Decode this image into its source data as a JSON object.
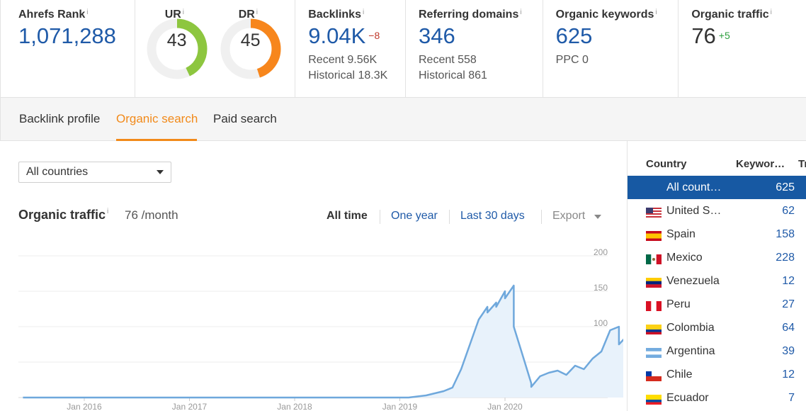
{
  "metrics": {
    "rank": {
      "label": "Ahrefs Rank",
      "info": "i",
      "value": "1,071,288"
    },
    "ur": {
      "label": "UR",
      "info": "i",
      "value": "43",
      "percent": 43,
      "color": "#8dc63f"
    },
    "dr": {
      "label": "DR",
      "info": "i",
      "value": "45",
      "percent": 45,
      "color": "#f7861c"
    },
    "backlinks": {
      "label": "Backlinks",
      "info": "i",
      "value": "9.04K",
      "delta": "−8",
      "recent": "Recent 9.56K",
      "historical": "Historical 18.3K"
    },
    "referring": {
      "label": "Referring domains",
      "info": "i",
      "value": "346",
      "recent": "Recent 558",
      "historical": "Historical 861"
    },
    "keywords": {
      "label": "Organic keywords",
      "info": "i",
      "value": "625",
      "ppc": "PPC 0"
    },
    "traffic": {
      "label": "Organic traffic",
      "info": "i",
      "value": "76",
      "delta": "+5"
    }
  },
  "tabs": [
    {
      "label": "Backlink profile",
      "active": false
    },
    {
      "label": "Organic search",
      "active": true
    },
    {
      "label": "Paid search",
      "active": false
    }
  ],
  "filter": {
    "selected": "All countries"
  },
  "chart_header": {
    "title": "Organic traffic",
    "info": "i",
    "subtitle": "76 /month",
    "ranges": [
      "All time",
      "One year",
      "Last 30 days"
    ],
    "active_range": "All time",
    "export_label": "Export"
  },
  "chart_data": {
    "type": "area",
    "ylim": [
      0,
      200
    ],
    "yticks": [
      "200",
      "150",
      "100",
      "50",
      "0"
    ],
    "xticks": [
      "Jan 2016",
      "Jan 2017",
      "Jan 2018",
      "Jan 2019",
      "Jan 2020"
    ],
    "series": [
      {
        "color": "#6fa8dc",
        "points": [
          [
            "2015-06",
            0
          ],
          [
            "2019-02",
            0
          ],
          [
            "2019-04",
            3
          ],
          [
            "2019-06",
            9
          ],
          [
            "2019-07",
            14
          ],
          [
            "2019-08",
            40
          ],
          [
            "2019-09",
            75
          ],
          [
            "2019-10",
            110
          ],
          [
            "2019-11",
            128
          ],
          [
            "2019-11",
            120
          ],
          [
            "2019-12",
            134
          ],
          [
            "2019-12",
            128
          ],
          [
            "2020-01",
            150
          ],
          [
            "2020-01",
            140
          ],
          [
            "2020-02",
            158
          ],
          [
            "2020-02",
            100
          ],
          [
            "2020-03",
            60
          ],
          [
            "2020-04",
            20
          ],
          [
            "2020-04",
            15
          ],
          [
            "2020-05",
            30
          ],
          [
            "2020-06",
            35
          ],
          [
            "2020-07",
            38
          ],
          [
            "2020-08",
            32
          ],
          [
            "2020-09",
            45
          ],
          [
            "2020-10",
            40
          ],
          [
            "2020-11",
            55
          ],
          [
            "2020-12",
            65
          ],
          [
            "2021-01",
            95
          ],
          [
            "2021-02",
            100
          ],
          [
            "2021-02",
            75
          ],
          [
            "2021-03",
            88
          ]
        ]
      }
    ]
  },
  "countries": {
    "header_country": "Country",
    "header_keywords": "Keywor…",
    "header_traffic": "Tr",
    "rows": [
      {
        "name": "All count…",
        "count": "625",
        "flag": "",
        "selected": true
      },
      {
        "name": "United S…",
        "count": "62",
        "flag": "us"
      },
      {
        "name": "Spain",
        "count": "158",
        "flag": "es"
      },
      {
        "name": "Mexico",
        "count": "228",
        "flag": "mx"
      },
      {
        "name": "Venezuela",
        "count": "12",
        "flag": "ve"
      },
      {
        "name": "Peru",
        "count": "27",
        "flag": "pe"
      },
      {
        "name": "Colombia",
        "count": "64",
        "flag": "co"
      },
      {
        "name": "Argentina",
        "count": "39",
        "flag": "ar"
      },
      {
        "name": "Chile",
        "count": "12",
        "flag": "cl"
      },
      {
        "name": "Ecuador",
        "count": "7",
        "flag": "ec"
      }
    ]
  }
}
